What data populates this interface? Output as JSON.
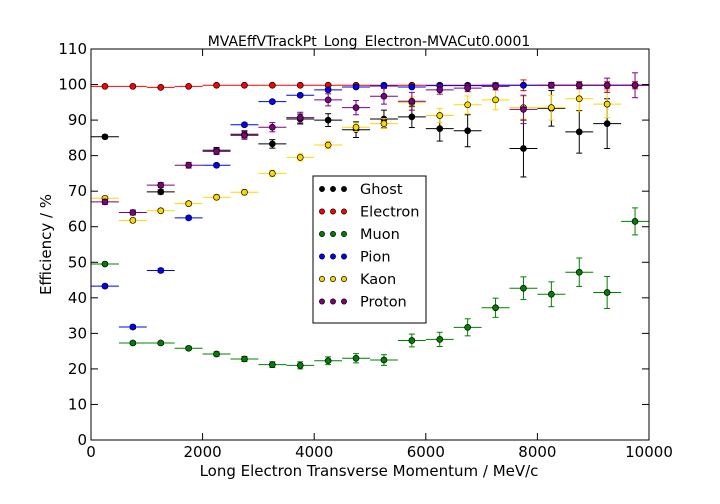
{
  "chart_data": {
    "type": "scatter",
    "title": "MVAEffVTrackPt_Long_Electron-MVACut0.0001",
    "xlabel": "Long Electron Transverse Momentum / MeV/c",
    "ylabel": "Efficiency / %",
    "xlim": [
      0,
      10000
    ],
    "ylim": [
      0,
      110
    ],
    "xticks": [
      0,
      2000,
      4000,
      6000,
      8000,
      10000
    ],
    "yticks": [
      0,
      10,
      20,
      30,
      40,
      50,
      60,
      70,
      80,
      90,
      100,
      110
    ],
    "xtick_labels": [
      "0",
      "2000",
      "4000",
      "6000",
      "8000",
      "10000"
    ],
    "ytick_labels": [
      "0",
      "10",
      "20",
      "30",
      "40",
      "50",
      "60",
      "70",
      "80",
      "90",
      "100",
      "110"
    ],
    "bin_half_width": 250,
    "grid": false,
    "legend_position": "center",
    "series": [
      {
        "name": "Ghost",
        "color": "#000000",
        "x": [
          250,
          1250,
          2250,
          2750,
          3250,
          3750,
          4250,
          4750,
          5250,
          5750,
          6250,
          6750,
          7750,
          8250,
          8750,
          9250
        ],
        "y": [
          85.3,
          69.8,
          81.5,
          86.0,
          83.3,
          90.3,
          90.0,
          87.3,
          90.3,
          90.9,
          87.6,
          87.0,
          82.0,
          93.3,
          86.7,
          89.0
        ],
        "yerr": [
          0.5,
          0.6,
          0.8,
          1.0,
          1.2,
          1.4,
          1.8,
          2.2,
          2.5,
          3.0,
          3.5,
          4.5,
          8.0,
          5.0,
          6.0,
          7.0
        ]
      },
      {
        "name": "Electron",
        "color": "#ff0000",
        "x": [
          250,
          750,
          1250,
          1750,
          2250,
          2750,
          3250,
          3750,
          4250,
          4750,
          5250,
          5750,
          6250,
          6750,
          7250,
          7750,
          8250,
          8750,
          9250,
          9750
        ],
        "y": [
          99.5,
          99.5,
          99.2,
          99.5,
          99.8,
          99.8,
          99.8,
          99.8,
          99.8,
          99.8,
          99.8,
          99.8,
          99.8,
          99.8,
          99.8,
          99.8,
          99.8,
          99.8,
          99.8,
          99.8
        ],
        "yerr": [
          0.3,
          0.3,
          0.3,
          0.3,
          0.3,
          0.3,
          0.3,
          0.3,
          0.3,
          0.3,
          0.3,
          0.3,
          0.5,
          0.5,
          0.6,
          1.5,
          0.8,
          0.9,
          1.0,
          1.0
        ]
      },
      {
        "name": "Muon",
        "color": "#008000",
        "x": [
          250,
          750,
          1250,
          1750,
          2250,
          2750,
          3250,
          3750,
          4250,
          4750,
          5250,
          5750,
          6250,
          6750,
          7250,
          7750,
          8250,
          8750,
          9250,
          9750
        ],
        "y": [
          49.5,
          27.3,
          27.3,
          25.8,
          24.2,
          22.8,
          21.2,
          21.0,
          22.3,
          23.0,
          22.5,
          28.0,
          28.3,
          31.7,
          37.2,
          42.7,
          41.0,
          47.2,
          41.5,
          61.5
        ],
        "yerr": [
          0.4,
          0.4,
          0.4,
          0.5,
          0.6,
          0.7,
          0.8,
          1.0,
          1.1,
          1.3,
          1.5,
          1.8,
          2.0,
          2.4,
          2.7,
          3.2,
          3.5,
          4.0,
          4.5,
          3.8
        ]
      },
      {
        "name": "Pion",
        "color": "#0000ff",
        "x": [
          250,
          750,
          1250,
          1750,
          2250,
          2750,
          3250,
          3750,
          4250,
          4750,
          5250,
          5750,
          6250,
          6750,
          7250,
          7750,
          8250,
          8750,
          9250,
          9750
        ],
        "y": [
          43.3,
          31.8,
          47.7,
          62.5,
          77.3,
          88.7,
          95.2,
          97.0,
          98.5,
          99.3,
          99.6,
          99.3,
          99.7,
          99.7,
          99.8,
          99.8,
          99.8,
          99.8,
          99.8,
          99.8
        ],
        "yerr": [
          0.5,
          0.5,
          0.5,
          0.5,
          0.5,
          0.5,
          0.4,
          0.4,
          0.4,
          0.3,
          0.3,
          0.3,
          0.3,
          0.3,
          0.3,
          0.3,
          0.3,
          0.3,
          0.3,
          0.3
        ]
      },
      {
        "name": "Kaon",
        "color": "#ffd700",
        "x": [
          250,
          750,
          1250,
          1750,
          2250,
          2750,
          3250,
          3750,
          4250,
          4750,
          5250,
          5750,
          6250,
          6750,
          7250,
          7750,
          8250,
          8750,
          9250
        ],
        "y": [
          68.0,
          61.8,
          64.5,
          66.5,
          68.3,
          69.7,
          75.0,
          79.5,
          83.0,
          88.0,
          89.0,
          95.0,
          91.3,
          94.3,
          95.7,
          93.5,
          93.5,
          96.0,
          94.5
        ],
        "yerr": [
          0.6,
          0.6,
          0.6,
          0.6,
          0.7,
          0.8,
          0.9,
          1.0,
          1.0,
          1.2,
          1.4,
          1.5,
          2.0,
          2.5,
          2.8,
          3.2,
          3.5,
          3.5,
          3.8
        ]
      },
      {
        "name": "Proton",
        "color": "#800080",
        "x": [
          250,
          750,
          1250,
          1750,
          2250,
          2750,
          3250,
          3750,
          4250,
          4750,
          5250,
          5750,
          6250,
          6750,
          7250,
          7750,
          8250,
          8750,
          9250,
          9750
        ],
        "y": [
          67.0,
          64.0,
          71.7,
          77.3,
          81.2,
          85.7,
          88.0,
          90.7,
          95.7,
          93.5,
          96.7,
          95.3,
          98.5,
          99.0,
          99.5,
          93.0,
          99.8,
          99.8,
          99.8,
          99.8
        ],
        "yerr": [
          0.7,
          0.7,
          0.7,
          0.8,
          0.9,
          1.1,
          1.3,
          1.5,
          1.7,
          2.0,
          2.2,
          2.5,
          1.2,
          1.0,
          1.0,
          4.0,
          0.8,
          1.0,
          2.0,
          3.5
        ]
      }
    ]
  }
}
